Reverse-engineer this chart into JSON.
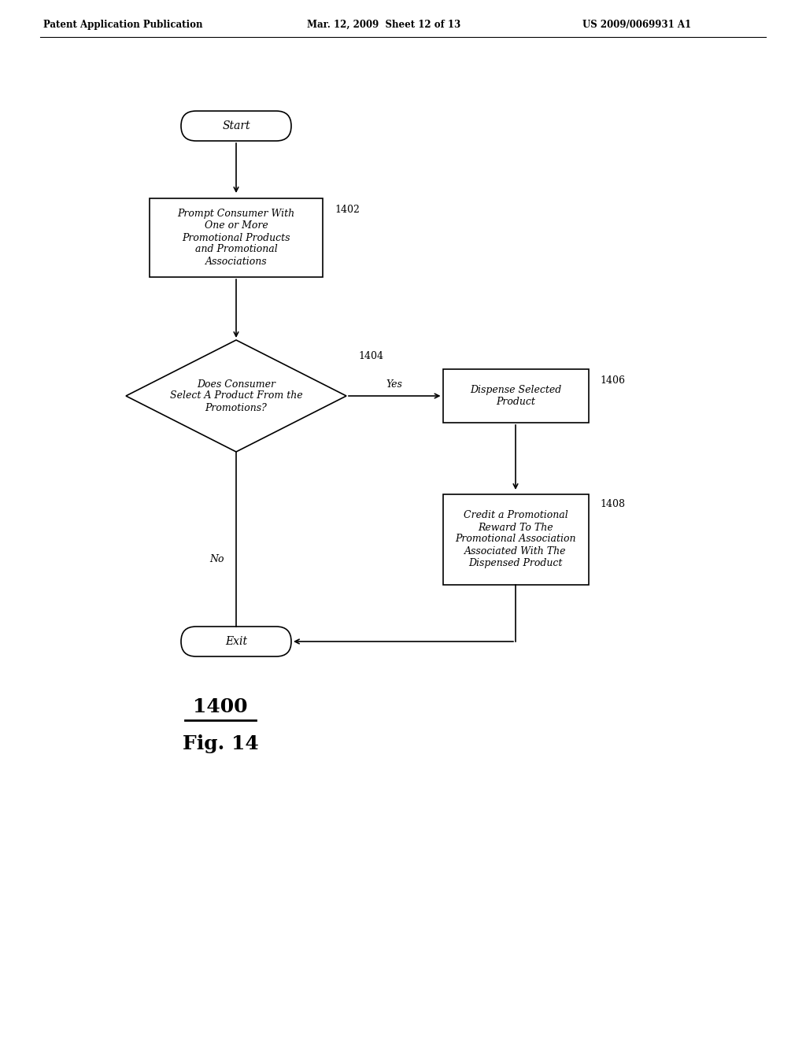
{
  "bg_color": "#ffffff",
  "header_left": "Patent Application Publication",
  "header_mid": "Mar. 12, 2009  Sheet 12 of 13",
  "header_right": "US 2009/0069931 A1",
  "fig_label_num": "1400",
  "fig_label": "Fig. 14",
  "start_label": "Start",
  "exit_label": "Exit",
  "box1402_text": "Prompt Consumer With\nOne or More\nPromotional Products\nand Promotional\nAssociations",
  "box1402_num": "1402",
  "diamond1404_text": "Does Consumer\nSelect A Product From the\nPromotions?",
  "diamond1404_num": "1404",
  "box1406_text": "Dispense Selected\nProduct",
  "box1406_num": "1406",
  "box1408_text": "Credit a Promotional\nReward To The\nPromotional Association\nAssociated With The\nDispensed Product",
  "box1408_num": "1408",
  "yes_label": "Yes",
  "no_label": "No"
}
